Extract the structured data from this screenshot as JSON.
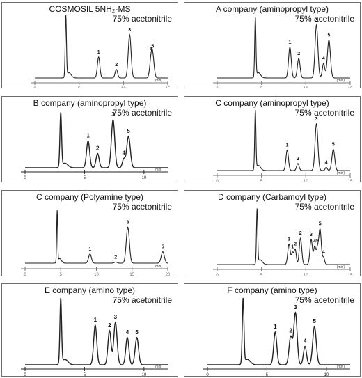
{
  "panels": [
    {
      "title": "COSMOSIL 5NH₂-MS",
      "subtitle": "75% acetonitrile"
    },
    {
      "title": "A company (aminopropyl type)",
      "subtitle": "75% acetonitrile"
    },
    {
      "title": "B company (aminopropyl type)",
      "subtitle": "75% acetonitrile"
    },
    {
      "title": "C company (aminopropyl type)",
      "subtitle": "75% acetonitrile"
    },
    {
      "title": "C company (Polyamine type)",
      "subtitle": "75% acetonitrile"
    },
    {
      "title": "D company (Carbamoyl type)",
      "subtitle": "75% acetonitrile"
    },
    {
      "title": "E company  (amino type)",
      "subtitle": "75% acetonitrile"
    },
    {
      "title": "F company (amino type)",
      "subtitle": "75% acetonitrile"
    }
  ],
  "chart_data": [
    {
      "type": "line",
      "title": "COSMOSIL 5NH₂-MS",
      "subtitle": "75% acetonitrile",
      "xunit": "(min)",
      "xlim": [
        0,
        15
      ],
      "ticks": [
        0,
        5,
        10,
        15
      ],
      "tick_labels": [
        "0",
        "5",
        "10",
        "15"
      ],
      "tick_style": "gray",
      "dead_time": 3.5,
      "dead_height": 0.93,
      "peaks": [
        {
          "t": 7.2,
          "h": 0.32,
          "w": 0.14,
          "label": "1"
        },
        {
          "t": 9.2,
          "h": 0.13,
          "w": 0.14,
          "label": "2"
        },
        {
          "t": 10.7,
          "h": 0.66,
          "w": 0.16,
          "label": "3"
        },
        {
          "t": 13.1,
          "h": 0.22,
          "w": 0.15,
          "label": "4"
        },
        {
          "t": 13.3,
          "h": 0.32,
          "w": 0.16,
          "label": "5"
        }
      ]
    },
    {
      "type": "line",
      "title": "A company (aminopropyl type)",
      "subtitle": "75% acetonitrile",
      "xunit": "(min)",
      "xlim": [
        0,
        15
      ],
      "ticks": [
        0,
        5,
        10,
        15
      ],
      "tick_labels": [
        "0",
        "5",
        "10",
        "15"
      ],
      "tick_style": "gray",
      "dead_time": 4.3,
      "dead_height": 0.9,
      "peaks": [
        {
          "t": 8.2,
          "h": 0.47,
          "w": 0.15,
          "label": "1"
        },
        {
          "t": 9.2,
          "h": 0.3,
          "w": 0.15,
          "label": "2"
        },
        {
          "t": 11.2,
          "h": 0.81,
          "w": 0.16,
          "label": "3"
        },
        {
          "t": 12.0,
          "h": 0.22,
          "w": 0.14,
          "label": "4"
        },
        {
          "t": 12.6,
          "h": 0.58,
          "w": 0.17,
          "label": "5"
        }
      ]
    },
    {
      "type": "line",
      "title": "B company (aminopropyl type)",
      "subtitle": "75% acetonitrile",
      "xunit": "(min)",
      "xlim": [
        0,
        12
      ],
      "ticks": [
        0,
        5,
        10
      ],
      "tick_labels": [
        "0",
        "5",
        "10"
      ],
      "tick_style": "black",
      "dead_time": 3.0,
      "dead_height": 0.94,
      "peaks": [
        {
          "t": 5.3,
          "h": 0.47,
          "w": 0.13,
          "label": "1"
        },
        {
          "t": 6.1,
          "h": 0.25,
          "w": 0.13,
          "label": "2"
        },
        {
          "t": 7.4,
          "h": 0.84,
          "w": 0.14,
          "label": "3"
        },
        {
          "t": 8.3,
          "h": 0.15,
          "w": 0.12,
          "label": "4"
        },
        {
          "t": 8.7,
          "h": 0.55,
          "w": 0.15,
          "label": "5"
        }
      ]
    },
    {
      "type": "line",
      "title": "C company (aminopropyl type)",
      "subtitle": "75% acetonitrile",
      "xunit": "(min)",
      "xlim": [
        0,
        15
      ],
      "ticks": [
        0,
        5,
        10,
        15
      ],
      "tick_labels": [
        "0",
        "5",
        "10",
        "15"
      ],
      "tick_style": "gray",
      "dead_time": 4.3,
      "dead_height": 0.92,
      "peaks": [
        {
          "t": 7.9,
          "h": 0.32,
          "w": 0.14,
          "label": "1"
        },
        {
          "t": 9.1,
          "h": 0.11,
          "w": 0.14,
          "label": "2"
        },
        {
          "t": 11.2,
          "h": 0.73,
          "w": 0.16,
          "label": "3"
        },
        {
          "t": 12.3,
          "h": 0.05,
          "w": 0.12,
          "label": "4"
        },
        {
          "t": 13.1,
          "h": 0.33,
          "w": 0.16,
          "label": "5"
        }
      ]
    },
    {
      "type": "line",
      "title": "C company (Polyamine type)",
      "subtitle": "75% acetonitrile",
      "xunit": "(min)",
      "xlim": [
        0,
        20
      ],
      "ticks": [
        0,
        5,
        10,
        15,
        20
      ],
      "tick_labels": [
        "0",
        "5",
        "10",
        "15",
        "20"
      ],
      "tick_style": "gray",
      "dead_time": 4.5,
      "dead_height": 0.9,
      "peaks": [
        {
          "t": 9.1,
          "h": 0.16,
          "w": 0.2,
          "label": "1"
        },
        {
          "t": 12.7,
          "h": 0.02,
          "w": 0.2,
          "label": "2"
        },
        {
          "t": 14.4,
          "h": 0.63,
          "w": 0.22,
          "label": "3"
        },
        {
          "t": 19.3,
          "h": 0.2,
          "w": 0.22,
          "label": "5"
        }
      ]
    },
    {
      "type": "line",
      "title": "D company (Carbamoyl type)",
      "subtitle": "75% acetonitrile",
      "xunit": "(min)",
      "xlim": [
        0,
        15
      ],
      "ticks": [
        0,
        5,
        10,
        15
      ],
      "tick_labels": [
        "0",
        "5",
        "10",
        "15"
      ],
      "tick_style": "gray",
      "dead_time": 4.5,
      "dead_height": 0.93,
      "peaks": [
        {
          "t": 8.1,
          "h": 0.35,
          "w": 0.14,
          "label": "1"
        },
        {
          "t": 8.5,
          "h": 0.2,
          "w": 0.12,
          "label": "1"
        },
        {
          "t": 8.8,
          "h": 0.26,
          "w": 0.12,
          "label": "2"
        },
        {
          "t": 9.4,
          "h": 0.45,
          "w": 0.14,
          "label": "2"
        },
        {
          "t": 10.6,
          "h": 0.43,
          "w": 0.14,
          "label": "3"
        },
        {
          "t": 11.0,
          "h": 0.3,
          "w": 0.12,
          "label": "4"
        },
        {
          "t": 11.3,
          "h": 0.25,
          "w": 0.12,
          "label": "5"
        },
        {
          "t": 11.6,
          "h": 0.6,
          "w": 0.14,
          "label": "5"
        },
        {
          "t": 12.0,
          "h": 0.12,
          "w": 0.12,
          "label": "4"
        }
      ]
    },
    {
      "type": "line",
      "title": "E company  (amino type)",
      "subtitle": "75% acetonitrile",
      "xunit": "(min)",
      "xlim": [
        0,
        12
      ],
      "ticks": [
        0,
        5,
        10
      ],
      "tick_labels": [
        "0",
        "5",
        "10"
      ],
      "tick_style": "black",
      "dead_time": 3.0,
      "dead_height": 0.95,
      "peaks": [
        {
          "t": 5.9,
          "h": 0.58,
          "w": 0.13,
          "label": "1"
        },
        {
          "t": 7.1,
          "h": 0.5,
          "w": 0.13,
          "label": "2"
        },
        {
          "t": 7.6,
          "h": 0.62,
          "w": 0.14,
          "label": "3"
        },
        {
          "t": 8.6,
          "h": 0.4,
          "w": 0.13,
          "label": "4"
        },
        {
          "t": 9.4,
          "h": 0.4,
          "w": 0.14,
          "label": "5"
        }
      ]
    },
    {
      "type": "line",
      "title": "F company (amino type)",
      "subtitle": "75% acetonitrile",
      "xunit": "(min)",
      "xlim": [
        0,
        12
      ],
      "ticks": [
        0,
        5,
        10
      ],
      "tick_labels": [
        "0",
        "5",
        "10"
      ],
      "tick_style": "black",
      "dead_time": 3.0,
      "dead_height": 0.95,
      "peaks": [
        {
          "t": 5.7,
          "h": 0.48,
          "w": 0.13,
          "label": "1"
        },
        {
          "t": 7.0,
          "h": 0.41,
          "w": 0.14,
          "label": "2"
        },
        {
          "t": 7.4,
          "h": 0.76,
          "w": 0.14,
          "label": "3"
        },
        {
          "t": 8.2,
          "h": 0.27,
          "w": 0.13,
          "label": "4"
        },
        {
          "t": 9.0,
          "h": 0.56,
          "w": 0.15,
          "label": "5"
        }
      ]
    }
  ]
}
